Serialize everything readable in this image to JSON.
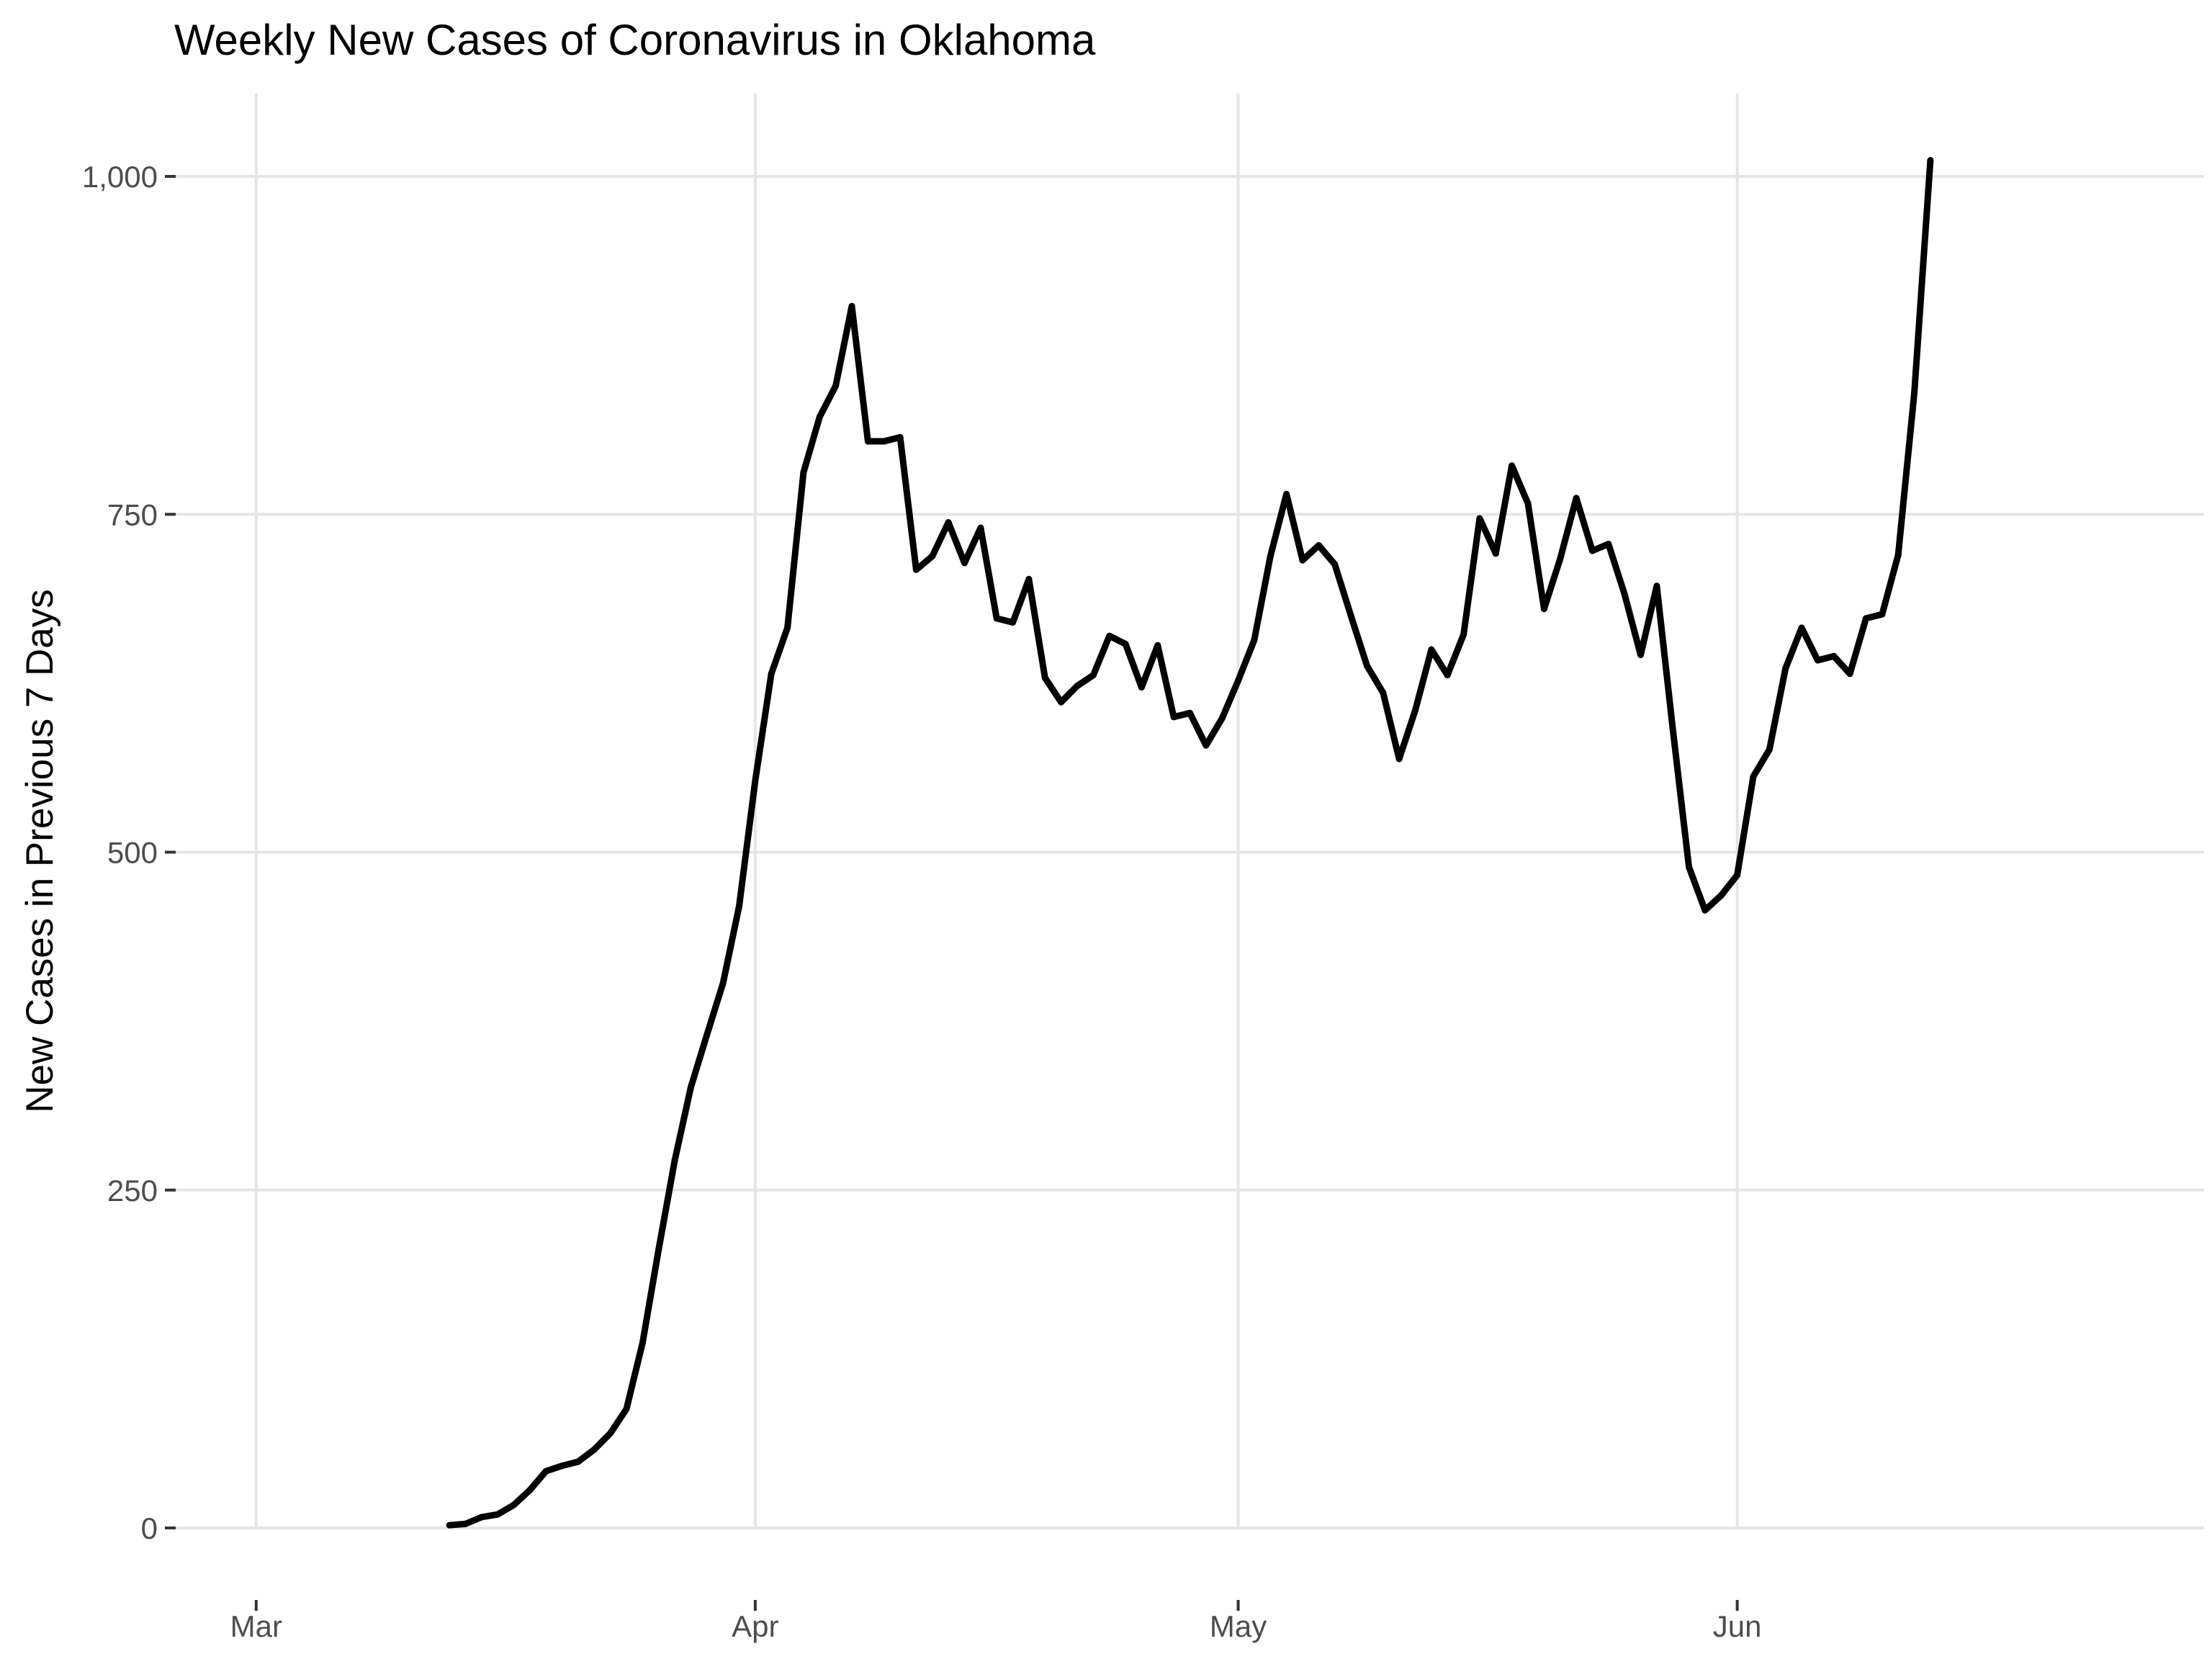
{
  "chart_data": {
    "type": "line",
    "title": "Weekly New Cases of Coronavirus in Oklahoma",
    "xlabel": "",
    "ylabel": "New Cases in Previous 7 Days",
    "x_axis_type": "date",
    "xlim": [
      "2020-02-25",
      "2020-06-30"
    ],
    "ylim": [
      0,
      1000
    ],
    "x_ticks": [
      {
        "date": "2020-03-01",
        "label": "Mar"
      },
      {
        "date": "2020-04-01",
        "label": "Apr"
      },
      {
        "date": "2020-05-01",
        "label": "May"
      },
      {
        "date": "2020-06-01",
        "label": "Jun"
      }
    ],
    "y_ticks": [
      {
        "value": 0,
        "label": "0"
      },
      {
        "value": 250,
        "label": "250"
      },
      {
        "value": 500,
        "label": "500"
      },
      {
        "value": 750,
        "label": "750"
      },
      {
        "value": 1000,
        "label": "1,000"
      }
    ],
    "grid": true,
    "legend": "none",
    "line_color": "#000000",
    "series": [
      {
        "x": [
          "2020-03-13",
          "2020-03-14",
          "2020-03-15",
          "2020-03-16",
          "2020-03-17",
          "2020-03-18",
          "2020-03-19",
          "2020-03-20",
          "2020-03-21",
          "2020-03-22",
          "2020-03-23",
          "2020-03-24",
          "2020-03-25",
          "2020-03-26",
          "2020-03-27",
          "2020-03-28",
          "2020-03-29",
          "2020-03-30",
          "2020-03-31",
          "2020-04-01",
          "2020-04-02",
          "2020-04-03",
          "2020-04-04",
          "2020-04-05",
          "2020-04-06",
          "2020-04-07",
          "2020-04-08",
          "2020-04-09",
          "2020-04-10",
          "2020-04-11",
          "2020-04-12",
          "2020-04-13",
          "2020-04-14",
          "2020-04-15",
          "2020-04-16",
          "2020-04-17",
          "2020-04-18",
          "2020-04-19",
          "2020-04-20",
          "2020-04-21",
          "2020-04-22",
          "2020-04-23",
          "2020-04-24",
          "2020-04-25",
          "2020-04-26",
          "2020-04-27",
          "2020-04-28",
          "2020-04-29",
          "2020-04-30",
          "2020-05-01",
          "2020-05-02",
          "2020-05-03",
          "2020-05-04",
          "2020-05-05",
          "2020-05-06",
          "2020-05-07",
          "2020-05-08",
          "2020-05-09",
          "2020-05-10",
          "2020-05-11",
          "2020-05-12",
          "2020-05-13",
          "2020-05-14",
          "2020-05-15",
          "2020-05-16",
          "2020-05-17",
          "2020-05-18",
          "2020-05-19",
          "2020-05-20",
          "2020-05-21",
          "2020-05-22",
          "2020-05-23",
          "2020-05-24",
          "2020-05-25",
          "2020-05-26",
          "2020-05-27",
          "2020-05-28",
          "2020-05-29",
          "2020-05-30",
          "2020-05-31",
          "2020-06-01",
          "2020-06-02",
          "2020-06-03",
          "2020-06-04",
          "2020-06-05",
          "2020-06-06",
          "2020-06-07",
          "2020-06-08",
          "2020-06-09",
          "2020-06-10",
          "2020-06-11",
          "2020-06-12",
          "2020-06-13"
        ],
        "values": [
          2,
          3,
          8,
          10,
          17,
          28,
          42,
          46,
          49,
          58,
          70,
          88,
          137,
          206,
          272,
          326,
          365,
          403,
          460,
          553,
          632,
          666,
          781,
          822,
          845,
          904,
          804,
          804,
          807,
          709,
          719,
          744,
          714,
          740,
          673,
          670,
          702,
          629,
          611,
          623,
          631,
          660,
          654,
          622,
          653,
          600,
          603,
          579,
          599,
          627,
          657,
          719,
          765,
          716,
          727,
          713,
          675,
          638,
          618,
          569,
          605,
          650,
          631,
          661,
          747,
          721,
          786,
          758,
          680,
          717,
          762,
          723,
          728,
          691,
          646,
          697,
          591,
          489,
          457,
          468,
          483,
          556,
          576,
          636,
          666,
          642,
          645,
          632,
          673,
          676,
          720,
          840,
          1012
        ]
      }
    ]
  }
}
